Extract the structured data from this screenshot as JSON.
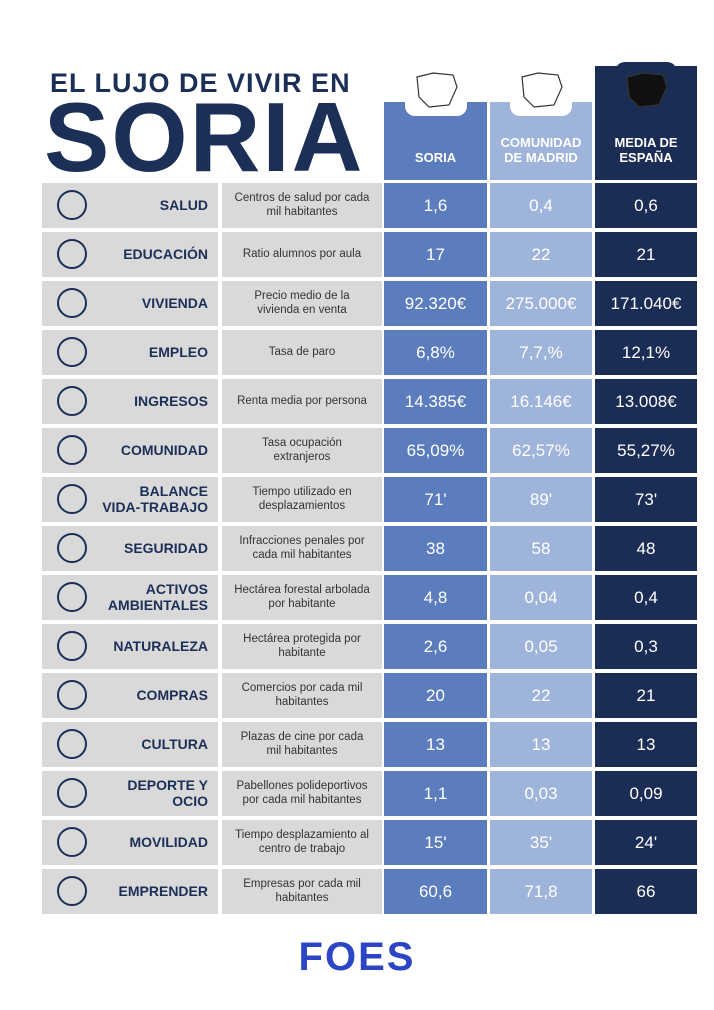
{
  "header": {
    "kicker": "EL LUJO DE VIVIR EN",
    "title": "SORIA"
  },
  "columns": [
    "SORIA",
    "COMUNIDAD DE MADRID",
    "MEDIA DE ESPAÑA"
  ],
  "rows": [
    [
      "SALUD",
      "Centros de salud por cada mil habitantes",
      "1,6",
      "0,4",
      "0,6"
    ],
    [
      "EDUCACIÓN",
      "Ratio alumnos por aula",
      "17",
      "22",
      "21"
    ],
    [
      "VIVIENDA",
      "Precio medio de la vivienda en venta",
      "92.320€",
      "275.000€",
      "171.040€"
    ],
    [
      "EMPLEO",
      "Tasa de paro",
      "6,8%",
      "7,7,%",
      "12,1%"
    ],
    [
      "INGRESOS",
      "Renta media por persona",
      "14.385€",
      "16.146€",
      "13.008€"
    ],
    [
      "COMUNIDAD",
      "Tasa ocupación extranjeros",
      "65,09%",
      "62,57%",
      "55,27%"
    ],
    [
      "BALANCE VIDA-TRABAJO",
      "Tiempo utilizado en desplazamientos",
      "71'",
      "89'",
      "73'"
    ],
    [
      "SEGURIDAD",
      "Infracciones penales por cada mil habitantes",
      "38",
      "58",
      "48"
    ],
    [
      "ACTIVOS AMBIENTALES",
      "Hectárea forestal arbolada por habitante",
      "4,8",
      "0,04",
      "0,4"
    ],
    [
      "NATURALEZA",
      "Hectárea protegida por habitante",
      "2,6",
      "0,05",
      "0,3"
    ],
    [
      "COMPRAS",
      "Comercios por cada mil habitantes",
      "20",
      "22",
      "21"
    ],
    [
      "CULTURA",
      "Plazas de cine por cada mil habitantes",
      "13",
      "13",
      "13"
    ],
    [
      "DEPORTE Y OCIO",
      "Pabellones polideportivos por cada mil habitantes",
      "1,1",
      "0,03",
      "0,09"
    ],
    [
      "MOVILIDAD",
      "Tiempo desplazamiento al centro de trabajo",
      "15'",
      "35'",
      "24'"
    ],
    [
      "EMPRENDER",
      "Empresas por cada mil habitantes",
      "60,6",
      "71,8",
      "66"
    ]
  ],
  "footer": {
    "logo": "FOES"
  }
}
